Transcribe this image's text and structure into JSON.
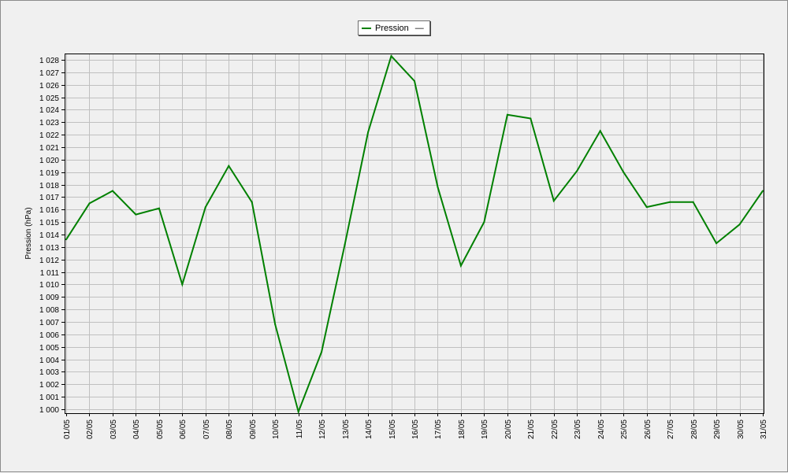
{
  "chart_data": {
    "type": "line",
    "ylabel": "Pression (hPa)",
    "xlabel": "",
    "ylim": [
      1000,
      1028
    ],
    "y_ticks": [
      "1 000",
      "1 001",
      "1 002",
      "1 003",
      "1 004",
      "1 005",
      "1 006",
      "1 007",
      "1 008",
      "1 009",
      "1 010",
      "1 011",
      "1 012",
      "1 013",
      "1 014",
      "1 015",
      "1 016",
      "1 017",
      "1 018",
      "1 019",
      "1 020",
      "1 021",
      "1 022",
      "1 023",
      "1 024",
      "1 025",
      "1 026",
      "1 027",
      "1 028"
    ],
    "categories": [
      "01/05",
      "02/05",
      "03/05",
      "04/05",
      "05/05",
      "06/05",
      "07/05",
      "08/05",
      "09/05",
      "10/05",
      "11/05",
      "12/05",
      "13/05",
      "14/05",
      "15/05",
      "16/05",
      "17/05",
      "18/05",
      "19/05",
      "20/05",
      "21/05",
      "22/05",
      "23/05",
      "24/05",
      "25/05",
      "26/05",
      "27/05",
      "28/05",
      "29/05",
      "30/05",
      "31/05"
    ],
    "series": [
      {
        "name": "Pression",
        "color": "#008000",
        "values": [
          1013.6,
          1016.5,
          1017.5,
          1015.6,
          1016.1,
          1010.0,
          1016.2,
          1019.5,
          1016.6,
          1006.8,
          999.8,
          1004.6,
          1013.2,
          1022.2,
          1028.3,
          1026.3,
          1017.8,
          1011.5,
          1015.0,
          1023.6,
          1023.3,
          1016.7,
          1019.1,
          1022.3,
          1019.0,
          1016.2,
          1016.6,
          1016.6,
          1013.3,
          1014.8,
          1017.5
        ]
      }
    ],
    "grid": true,
    "legend_position": "top-center",
    "plot_background": "#f0f0f0",
    "grid_color": "#c0c0c0"
  },
  "legend": {
    "label": "Pression",
    "suffix": "—"
  }
}
